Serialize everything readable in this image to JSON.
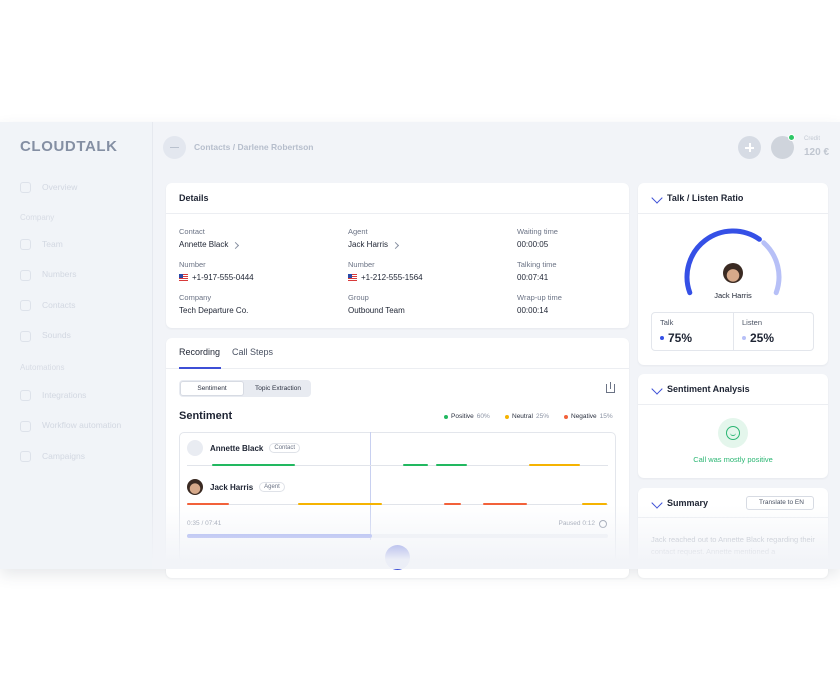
{
  "sidebar": {
    "logo": "CLOUDTALK",
    "nav": [
      "Overview"
    ],
    "sections": [
      {
        "title": "Company",
        "items": [
          "Team",
          "Numbers",
          "Contacts",
          "Sounds"
        ]
      },
      {
        "title": "Automations",
        "items": [
          "Integrations",
          "Workflow automation",
          "Campaigns"
        ]
      }
    ]
  },
  "header": {
    "breadcrumb": "Contacts / Darlene Robertson",
    "credit_label": "Credit",
    "credit_value": "120 €"
  },
  "details": {
    "title": "Details",
    "fields": [
      {
        "label": "Contact",
        "value": "Annette Black"
      },
      {
        "label": "Agent",
        "value": "Jack Harris"
      },
      {
        "label": "Waiting time",
        "value": "00:00:05"
      },
      {
        "label": "Number",
        "value": "+1-917-555-0444"
      },
      {
        "label": "Number",
        "value": "+1-212-555-1564"
      },
      {
        "label": "Talking time",
        "value": "00:07:41"
      },
      {
        "label": "Company",
        "value": "Tech Departure Co."
      },
      {
        "label": "Group",
        "value": "Outbound Team"
      },
      {
        "label": "Wrap-up time",
        "value": "00:00:14"
      }
    ]
  },
  "recording": {
    "tabs": [
      "Recording",
      "Call Steps"
    ],
    "modes": [
      "Sentiment",
      "Topic Extraction"
    ],
    "heading": "Sentiment",
    "legend": [
      {
        "name": "Positive",
        "value": "60%"
      },
      {
        "name": "Neutral",
        "value": "25%"
      },
      {
        "name": "Negative",
        "value": "15%"
      }
    ],
    "speakers": [
      {
        "name": "Annette Black",
        "role": "Contact"
      },
      {
        "name": "Jack Harris",
        "role": "Agent"
      }
    ],
    "position": "0:35 / 07:41",
    "paused": "Paused 0:12"
  },
  "talk_listen": {
    "title": "Talk / Listen Ratio",
    "agent": "Jack Harris",
    "talk_label": "Talk",
    "talk_value": "75%",
    "listen_label": "Listen",
    "listen_value": "25%"
  },
  "sentiment_analysis": {
    "title": "Sentiment Analysis",
    "result": "Call was mostly positive"
  },
  "summary": {
    "title": "Summary",
    "translate": "Translate to EN",
    "text": "Jack reached out to Annette Black regarding their contact request. Annette mentioned a"
  }
}
